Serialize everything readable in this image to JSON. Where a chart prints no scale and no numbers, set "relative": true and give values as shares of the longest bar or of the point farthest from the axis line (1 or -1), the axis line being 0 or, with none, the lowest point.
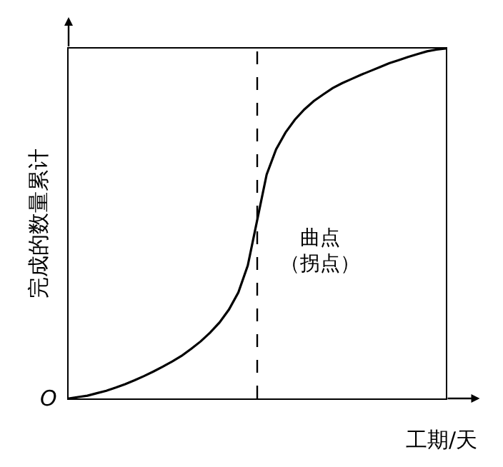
{
  "chart_data": {
    "type": "line",
    "relative": true,
    "xlabel": "工期/天",
    "ylabel": "完成的数量累计",
    "categories": [
      null,
      null,
      null,
      null,
      null,
      null,
      null,
      null,
      null,
      null,
      null,
      null,
      null,
      null,
      null,
      null,
      null,
      null,
      null,
      null,
      null,
      null,
      null,
      null,
      null,
      null,
      null,
      null,
      null,
      null,
      null,
      null,
      null,
      null,
      null,
      null,
      null,
      null,
      null,
      null,
      null
    ],
    "series": [
      {
        "color": "#000000",
        "values": [
          0,
          0.004,
          0.008,
          0.015,
          0.022,
          0.031,
          0.041,
          0.052,
          0.064,
          0.077,
          0.091,
          0.106,
          0.122,
          0.142,
          0.163,
          0.188,
          0.217,
          0.254,
          0.303,
          0.38,
          0.51,
          0.64,
          0.712,
          0.76,
          0.797,
          0.826,
          0.85,
          0.869,
          0.887,
          0.901,
          0.913,
          0.925,
          0.936,
          0.947,
          0.958,
          0.967,
          0.976,
          0.984,
          0.992,
          0.997,
          1.0
        ]
      }
    ],
    "ref_lines": [
      {
        "axis": "x",
        "line_style": "dashed",
        "color": "#000000"
      }
    ],
    "annotations": [
      "曲点（拐点）",
      "O"
    ],
    "marker": "none",
    "line_style": "solid"
  }
}
